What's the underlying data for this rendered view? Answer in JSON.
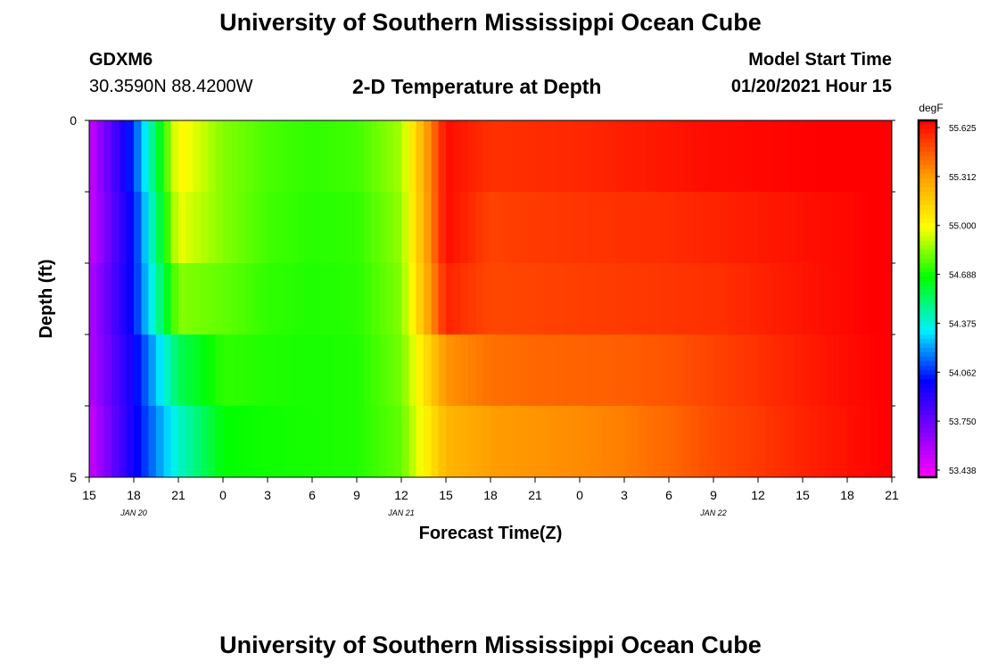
{
  "page": {
    "title_top": "University of Southern Mississippi Ocean Cube",
    "title_bottom": "University of Southern Mississippi Ocean Cube",
    "station_id": "GDXM6",
    "station_coords": "30.3590N 88.4200W",
    "plot_title": "2-D Temperature at Depth",
    "model_start_label": "Model Start Time",
    "model_start_value": "01/20/2021 Hour 15"
  },
  "chart_data": {
    "type": "heatmap",
    "title": "2-D Temperature at Depth",
    "xlabel": "Forecast Time(Z)",
    "ylabel": "Depth (ft)",
    "ylim": [
      0,
      5
    ],
    "y_tick_labels": [
      "0",
      "5"
    ],
    "x_tick_labels": [
      "15",
      "18",
      "21",
      "0",
      "3",
      "6",
      "9",
      "12",
      "15",
      "18",
      "21",
      "0",
      "3",
      "6",
      "9",
      "12",
      "15",
      "18",
      "21"
    ],
    "date_labels": [
      "JAN 20",
      "JAN 21",
      "JAN 22"
    ],
    "date_label_ticks": [
      1,
      7,
      14
    ],
    "colorbar": {
      "unit": "degF",
      "min": 53.438,
      "max": 55.625,
      "tick_labels": [
        "55.625",
        "55.312",
        "55.000",
        "54.688",
        "54.375",
        "54.062",
        "53.750",
        "53.438"
      ]
    },
    "time_hours": [
      0,
      3,
      6,
      9,
      12,
      15,
      18,
      21,
      24,
      27,
      30,
      33,
      36,
      39,
      42,
      45,
      48,
      51,
      54
    ],
    "depth_rows": [
      0.5,
      1.5,
      2.5,
      3.5,
      4.5
    ],
    "values": [
      [
        53.55,
        54.1,
        55.0,
        54.82,
        54.75,
        54.72,
        54.74,
        54.86,
        55.6,
        55.52,
        55.53,
        55.54,
        55.56,
        55.58,
        55.6,
        55.61,
        55.62,
        55.63,
        55.65
      ],
      [
        53.55,
        54.05,
        54.95,
        54.82,
        54.74,
        54.71,
        54.72,
        54.84,
        55.6,
        55.48,
        55.5,
        55.51,
        55.52,
        55.53,
        55.55,
        55.57,
        55.59,
        55.61,
        55.64
      ],
      [
        53.6,
        54.05,
        54.82,
        54.78,
        54.72,
        54.7,
        54.71,
        54.82,
        55.55,
        55.47,
        55.48,
        55.49,
        55.5,
        55.51,
        55.52,
        55.55,
        55.58,
        55.61,
        55.64
      ],
      [
        53.6,
        54.0,
        54.55,
        54.72,
        54.7,
        54.69,
        54.7,
        54.8,
        55.3,
        55.38,
        55.4,
        55.41,
        55.42,
        55.44,
        55.48,
        55.52,
        55.56,
        55.6,
        55.63
      ],
      [
        53.55,
        54.0,
        54.4,
        54.66,
        54.68,
        54.69,
        54.7,
        54.78,
        55.2,
        55.28,
        55.3,
        55.32,
        55.35,
        55.4,
        55.46,
        55.5,
        55.55,
        55.59,
        55.63
      ]
    ]
  }
}
